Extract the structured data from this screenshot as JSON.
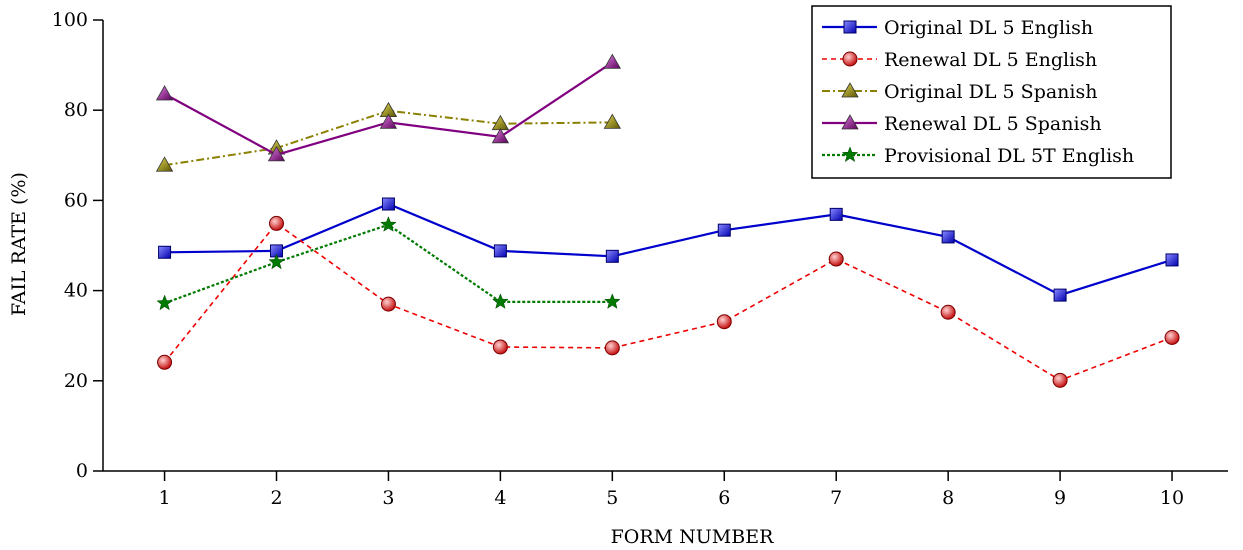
{
  "chart_data": {
    "type": "line",
    "xlabel": "FORM NUMBER",
    "ylabel": "FAIL RATE (%)",
    "x": [
      1,
      2,
      3,
      4,
      5,
      6,
      7,
      8,
      9,
      10
    ],
    "xlim": [
      0.45,
      10.5
    ],
    "ylim": [
      0,
      100
    ],
    "yticks": [
      0,
      20,
      40,
      60,
      80,
      100
    ],
    "grid": false,
    "legend_position": "top-right",
    "series": [
      {
        "name": "Original DL 5 English",
        "x": [
          1,
          2,
          3,
          4,
          5,
          6,
          7,
          8,
          9,
          10
        ],
        "values": [
          48.5,
          48.8,
          59.2,
          48.8,
          47.6,
          53.4,
          56.9,
          51.9,
          39.0,
          46.8
        ],
        "color": "#0000cc",
        "marker": "square",
        "line_style": "solid"
      },
      {
        "name": "Renewal DL 5 English",
        "x": [
          1,
          2,
          3,
          4,
          5,
          6,
          7,
          8,
          9,
          10
        ],
        "values": [
          24.1,
          54.9,
          37.0,
          27.5,
          27.3,
          33.1,
          47.0,
          35.2,
          20.1,
          29.6
        ],
        "color": "#ee0000",
        "marker": "circle",
        "line_style": "dashed"
      },
      {
        "name": "Original DL 5 Spanish",
        "x": [
          1,
          2,
          3,
          4,
          5
        ],
        "values": [
          67.8,
          71.6,
          79.9,
          77.0,
          77.3
        ],
        "color": "#8b8000",
        "marker": "triangle",
        "line_style": "dashdot"
      },
      {
        "name": "Renewal DL 5 Spanish",
        "x": [
          1,
          2,
          3,
          4,
          5
        ],
        "values": [
          83.6,
          70.1,
          77.3,
          74.1,
          90.6
        ],
        "color": "#800080",
        "marker": "triangle",
        "line_style": "solid"
      },
      {
        "name": "Provisional DL 5T English",
        "x": [
          1,
          2,
          3,
          4,
          5
        ],
        "values": [
          37.2,
          46.3,
          54.6,
          37.5,
          37.5
        ],
        "color": "#007a00",
        "marker": "star",
        "line_style": "dotted"
      }
    ]
  }
}
